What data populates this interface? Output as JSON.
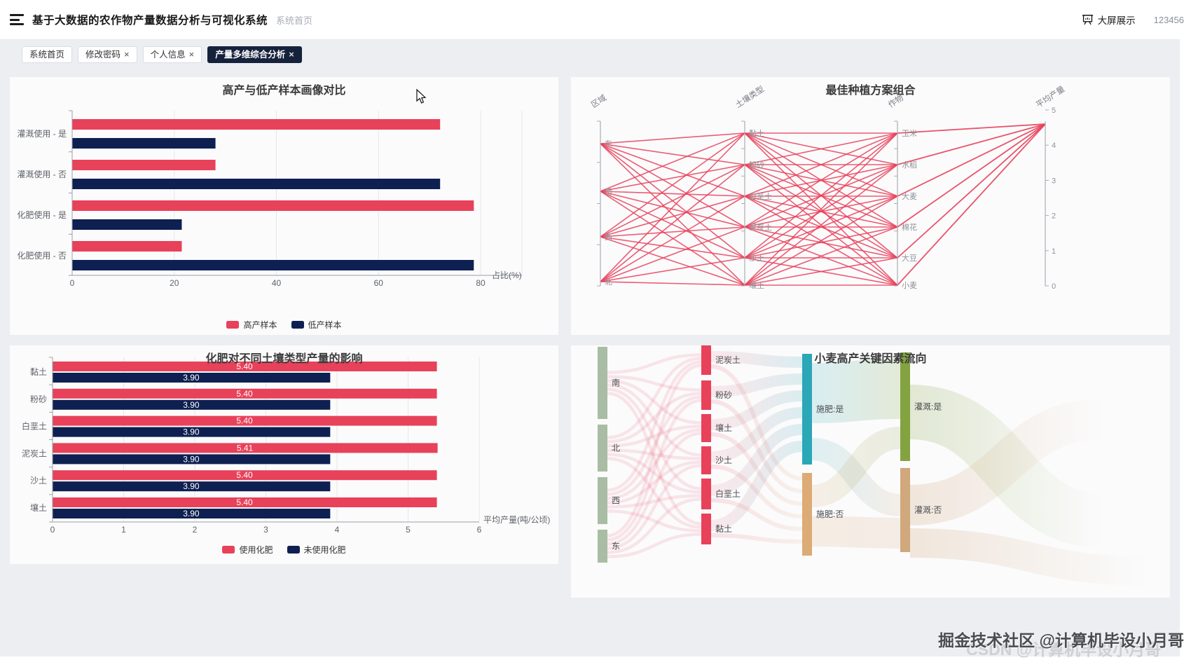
{
  "header": {
    "title": "基于大数据的农作物产量数据分析与可视化系统",
    "breadcrumb": "系统首页",
    "screen_button": "大屏展示",
    "username": "123456"
  },
  "icons": {
    "close": "×"
  },
  "tabs": [
    {
      "label": "系统首页",
      "closable": false,
      "active": false
    },
    {
      "label": "修改密码",
      "closable": true,
      "active": false
    },
    {
      "label": "个人信息",
      "closable": true,
      "active": false
    },
    {
      "label": "产量多维综合分析",
      "closable": true,
      "active": true
    }
  ],
  "colors": {
    "accent_red": "#e8415a",
    "accent_navy": "#0e2051",
    "page_bg": "#eceef1",
    "panel_bg": "#fbfbfc",
    "active_tab_bg": "#16213c"
  },
  "chart_data": [
    {
      "id": "profile-compare",
      "type": "bar",
      "orientation": "horizontal",
      "title": "高产与低产样本画像对比",
      "categories": [
        "灌溉使用 - 是",
        "灌溉使用 - 否",
        "化肥使用 - 是",
        "化肥使用 - 否"
      ],
      "series": [
        {
          "name": "高产样本",
          "color": "#e8415a",
          "values": [
            72,
            28,
            78.6,
            21.4
          ]
        },
        {
          "name": "低产样本",
          "color": "#0e2051",
          "values": [
            28,
            72,
            21.4,
            78.6
          ]
        }
      ],
      "xlabel": "占比(%)",
      "xlim": [
        0,
        80
      ],
      "xticks": [
        0,
        20,
        40,
        60,
        80
      ],
      "grid": true,
      "legend_position": "bottom"
    },
    {
      "id": "best-plan",
      "type": "parallel",
      "title": "最佳种植方案组合",
      "line_color": "#e8415a",
      "converge_value": 4.6,
      "axes": [
        {
          "name": "区域",
          "values": [
            "东",
            "南",
            "西",
            "北"
          ]
        },
        {
          "name": "土壤类型",
          "values": [
            "黏土",
            "粉砂",
            "白垩土",
            "泥炭土",
            "沙土",
            "壤土"
          ]
        },
        {
          "name": "作物",
          "values": [
            "玉米",
            "水稻",
            "大麦",
            "棉花",
            "大豆",
            "小麦"
          ]
        },
        {
          "name": "平均产量",
          "min": 0,
          "max": 5,
          "ticks": [
            5,
            4,
            3,
            2,
            1,
            0
          ]
        }
      ]
    },
    {
      "id": "fertilizer-soil",
      "type": "bar",
      "orientation": "horizontal",
      "title": "化肥对不同土壤类型产量的影响",
      "categories": [
        "黏土",
        "粉砂",
        "白垩土",
        "泥炭土",
        "沙土",
        "壤土"
      ],
      "series": [
        {
          "name": "使用化肥",
          "color": "#e8415a",
          "values": [
            5.4,
            5.4,
            5.4,
            5.41,
            5.4,
            5.4
          ],
          "labels": [
            "5.40",
            "5.40",
            "5.40",
            "5.41",
            "5.40",
            "5.40"
          ]
        },
        {
          "name": "未使用化肥",
          "color": "#0e2051",
          "values": [
            3.9,
            3.9,
            3.9,
            3.9,
            3.9,
            3.9
          ],
          "labels": [
            "3.90",
            "3.90",
            "3.90",
            "3.90",
            "3.90",
            "3.90"
          ]
        }
      ],
      "xlabel": "平均产量(吨/公顷)",
      "xlim": [
        0,
        6
      ],
      "xticks": [
        0,
        1,
        2,
        3,
        4,
        5,
        6
      ],
      "grid": true,
      "legend_position": "bottom"
    },
    {
      "id": "wheat-sankey",
      "type": "sankey",
      "title": "小麦高产关键因素流向",
      "columns": [
        {
          "name": "region",
          "color": "#a9bca4",
          "nodes": [
            "南",
            "北",
            "西",
            "东"
          ]
        },
        {
          "name": "soil",
          "color": "#e8415a",
          "nodes": [
            "泥炭土",
            "粉砂",
            "壤土",
            "沙土",
            "白垩土",
            "黏土"
          ]
        },
        {
          "name": "fertilizer",
          "nodes": [
            {
              "label": "施肥:是",
              "color": "#2ba7b7"
            },
            {
              "label": "施肥:否",
              "color": "#dcab76"
            }
          ]
        },
        {
          "name": "irrigation",
          "nodes": [
            {
              "label": "灌溉:是",
              "color": "#83a341"
            },
            {
              "label": "灌溉:否",
              "color": "#d0a87c"
            }
          ]
        }
      ]
    }
  ],
  "watermark": {
    "main": "掘金技术社区 @计算机毕设小月哥",
    "ghost": "CSDN @计算机毕设小月哥"
  }
}
